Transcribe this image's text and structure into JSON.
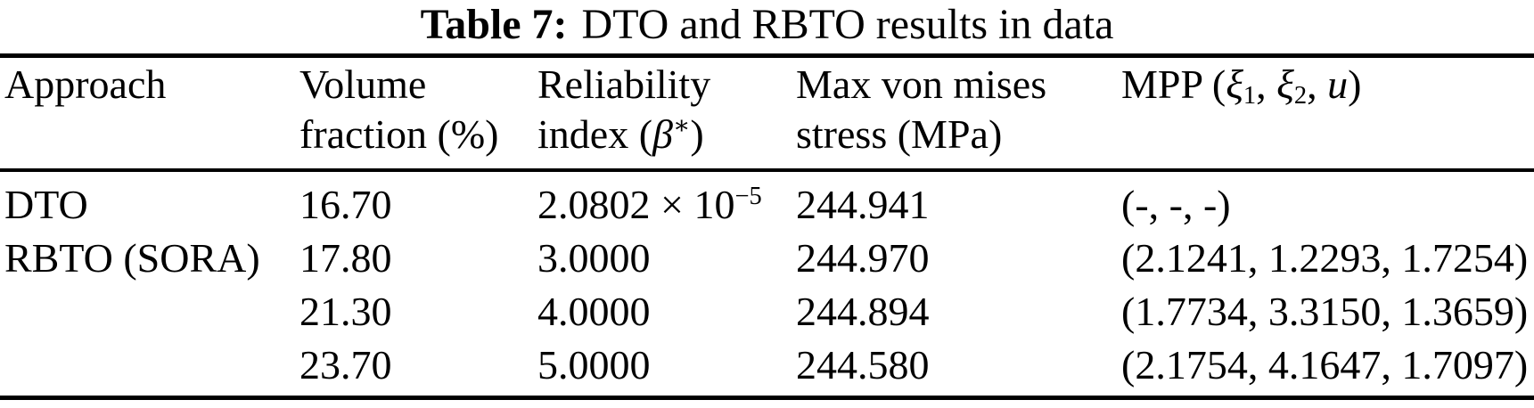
{
  "title": {
    "label": "Table 7:",
    "text": "DTO and RBTO results in data"
  },
  "table": {
    "headers": {
      "approach": "Approach",
      "volume_line1": "Volume",
      "volume_line2": "fraction (%)",
      "reliability_line1": "Reliability",
      "reliability_line2_pre": "index (",
      "reliability_symbol": "β",
      "reliability_sup": "∗",
      "reliability_line2_post": ")",
      "stress_line1": "Max von mises",
      "stress_line2": "stress (MPa)",
      "mpp_pre": "MPP (",
      "mpp_xi1": "ξ",
      "mpp_sub1": "1",
      "mpp_sep1": ", ",
      "mpp_xi2": "ξ",
      "mpp_sub2": "2",
      "mpp_sep2": ", ",
      "mpp_u": "u",
      "mpp_post": ")"
    },
    "rows": [
      {
        "approach": "DTO",
        "volume": "16.70",
        "reliability_base": "2.0802 × 10",
        "reliability_sup": "−5",
        "stress": "244.941",
        "mpp": "(-, -, -)"
      },
      {
        "approach": "RBTO (SORA)",
        "volume": "17.80",
        "reliability_base": "3.0000",
        "reliability_sup": "",
        "stress": "244.970",
        "mpp": "(2.1241, 1.2293, 1.7254)"
      },
      {
        "approach": "",
        "volume": "21.30",
        "reliability_base": "4.0000",
        "reliability_sup": "",
        "stress": "244.894",
        "mpp": "(1.7734, 3.3150, 1.3659)"
      },
      {
        "approach": "",
        "volume": "23.70",
        "reliability_base": "5.0000",
        "reliability_sup": "",
        "stress": "244.580",
        "mpp": "(2.1754, 4.1647, 1.7097)"
      }
    ]
  }
}
